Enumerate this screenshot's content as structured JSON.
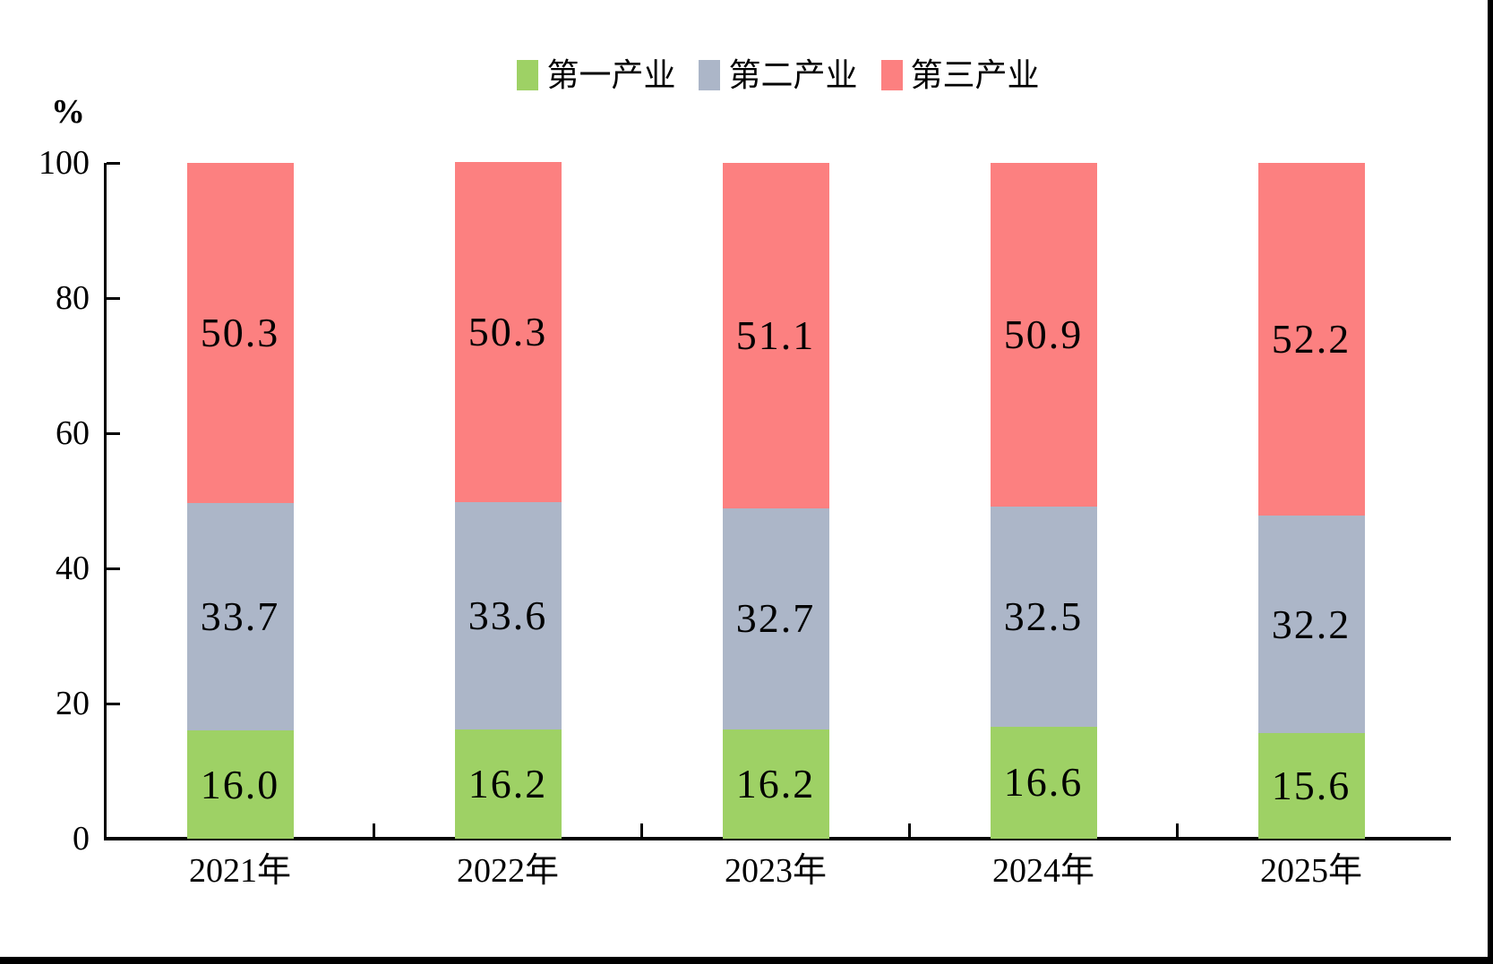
{
  "figure": {
    "background": "#ffffff",
    "border_color": "#000000"
  },
  "chart_data": {
    "type": "bar",
    "stacked": true,
    "title": "",
    "xlabel": "",
    "ylabel": "%",
    "ylim": [
      0,
      100
    ],
    "yticks": [
      0,
      20,
      40,
      60,
      80,
      100
    ],
    "grid": false,
    "legend_position": "top-center",
    "value_label_position": "inside-center",
    "categories": [
      "2021年",
      "2022年",
      "2023年",
      "2024年",
      "2025年"
    ],
    "series": [
      {
        "name": "第一产业",
        "color": "#9ED165",
        "values": [
          16.0,
          16.2,
          16.2,
          16.6,
          15.6
        ],
        "labels": [
          "16.0",
          "16.2",
          "16.2",
          "16.6",
          "15.6"
        ]
      },
      {
        "name": "第二产业",
        "color": "#ACB6C8",
        "values": [
          33.7,
          33.6,
          32.7,
          32.5,
          32.2
        ],
        "labels": [
          "33.7",
          "33.6",
          "32.7",
          "32.5",
          "32.2"
        ]
      },
      {
        "name": "第三产业",
        "color": "#FC8080",
        "values": [
          50.3,
          50.3,
          51.1,
          50.9,
          52.2
        ],
        "labels": [
          "50.3",
          "50.3",
          "51.1",
          "50.9",
          "52.2"
        ]
      }
    ]
  }
}
